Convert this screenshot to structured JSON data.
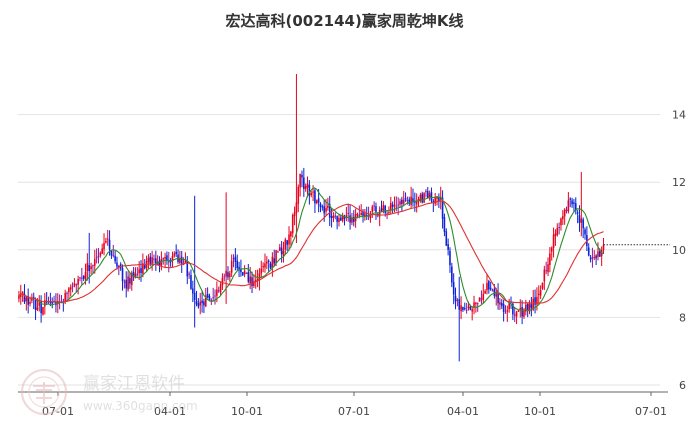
{
  "chart_data": {
    "type": "candlestick",
    "title": "宏达高科(002144)赢家周乾坤K线",
    "xlabel": "",
    "ylabel": "",
    "ylim": [
      6,
      16
    ],
    "grid": true,
    "legend": "none",
    "x_ticks": [
      "07-01",
      "04-01",
      "10-01",
      "07-01",
      "04-01",
      "10-01",
      "07-01"
    ],
    "y_ticks": [
      6,
      8,
      10,
      12,
      14
    ],
    "colors": {
      "up": "#e8001c",
      "down": "#0a22d8",
      "neutral": "#8a1a9b",
      "ma_short": "#2e8b2e",
      "ma_long": "#e03030",
      "grid": "#e3e3e3",
      "last_price_line": "#333333"
    },
    "last_price": 10.15,
    "series_anchors": [
      {
        "t": 0,
        "v": 8.65
      },
      {
        "t": 12,
        "v": 8.3
      },
      {
        "t": 25,
        "v": 8.6
      },
      {
        "t": 38,
        "v": 9.5
      },
      {
        "t": 48,
        "v": 10.2
      },
      {
        "t": 58,
        "v": 9.0
      },
      {
        "t": 68,
        "v": 9.6
      },
      {
        "t": 82,
        "v": 9.8
      },
      {
        "t": 90,
        "v": 9.6
      },
      {
        "t": 96,
        "v": 8.3
      },
      {
        "t": 106,
        "v": 8.7
      },
      {
        "t": 116,
        "v": 9.6
      },
      {
        "t": 126,
        "v": 9.1
      },
      {
        "t": 136,
        "v": 9.6
      },
      {
        "t": 146,
        "v": 10.3
      },
      {
        "t": 152,
        "v": 12.1
      },
      {
        "t": 160,
        "v": 11.5
      },
      {
        "t": 172,
        "v": 10.9
      },
      {
        "t": 184,
        "v": 11.0
      },
      {
        "t": 196,
        "v": 11.2
      },
      {
        "t": 208,
        "v": 11.4
      },
      {
        "t": 220,
        "v": 11.6
      },
      {
        "t": 228,
        "v": 11.4
      },
      {
        "t": 236,
        "v": 8.4
      },
      {
        "t": 244,
        "v": 8.3
      },
      {
        "t": 254,
        "v": 9.0
      },
      {
        "t": 262,
        "v": 8.3
      },
      {
        "t": 272,
        "v": 8.2
      },
      {
        "t": 280,
        "v": 8.5
      },
      {
        "t": 290,
        "v": 10.5
      },
      {
        "t": 298,
        "v": 11.4
      },
      {
        "t": 304,
        "v": 10.8
      },
      {
        "t": 310,
        "v": 9.6
      },
      {
        "t": 316,
        "v": 10.15
      }
    ],
    "spikes": [
      {
        "t": 38,
        "high": 10.5,
        "low": 9.0
      },
      {
        "t": 95,
        "high": 11.6,
        "low": 7.7
      },
      {
        "t": 112,
        "high": 11.7,
        "low": 8.4
      },
      {
        "t": 150,
        "high": 15.2,
        "low": 10.2
      },
      {
        "t": 238,
        "high": 9.2,
        "low": 6.7
      },
      {
        "t": 304,
        "high": 12.3,
        "low": 10.4
      }
    ]
  },
  "watermark": {
    "name": "赢家江恩软件",
    "url": "www.360gann.com"
  }
}
